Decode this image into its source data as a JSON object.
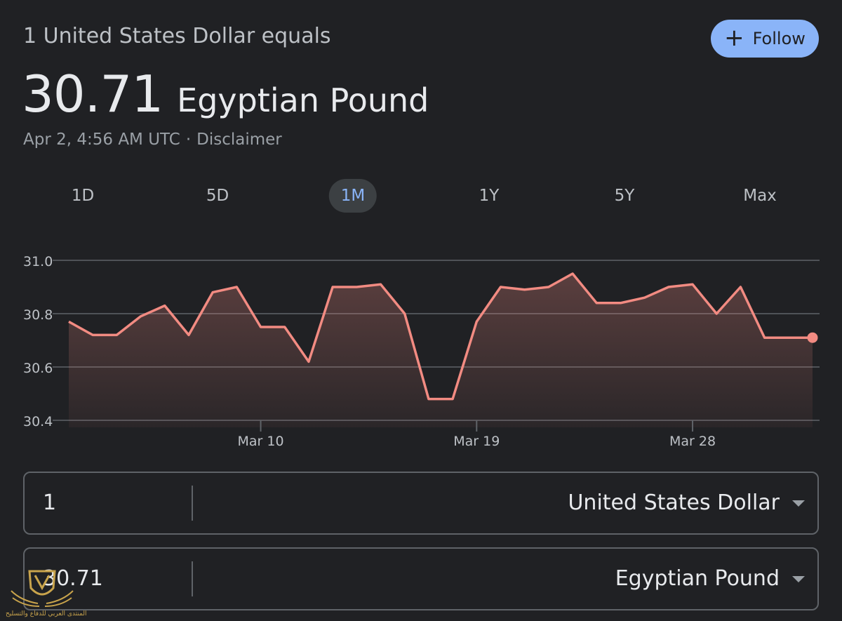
{
  "header": {
    "headline": "1 United States Dollar equals",
    "follow_label": "Follow",
    "follow_icon": "plus-icon",
    "rate_value": "30.71",
    "rate_currency": "Egyptian Pound",
    "timestamp": "Apr 2, 4:56 AM UTC",
    "separator": "·",
    "disclaimer": "Disclaimer"
  },
  "ranges": [
    {
      "label": "1D",
      "active": false
    },
    {
      "label": "5D",
      "active": false
    },
    {
      "label": "1M",
      "active": true
    },
    {
      "label": "1Y",
      "active": false
    },
    {
      "label": "5Y",
      "active": false
    },
    {
      "label": "Max",
      "active": false
    }
  ],
  "colors": {
    "background": "#202124",
    "accent": "#8ab4f8",
    "line": "#f28b82",
    "grid": "#5f6368"
  },
  "chart_data": {
    "type": "area",
    "title": "",
    "xlabel": "",
    "ylabel": "",
    "ylim": [
      30.4,
      31.0
    ],
    "yticks": [
      "31.0",
      "30.8",
      "30.6",
      "30.4"
    ],
    "xticks": [
      "Mar 10",
      "Mar 19",
      "Mar 28"
    ],
    "x": [
      "Mar 2",
      "Mar 3",
      "Mar 4",
      "Mar 5",
      "Mar 6",
      "Mar 7",
      "Mar 8",
      "Mar 9",
      "Mar 10",
      "Mar 11",
      "Mar 12",
      "Mar 13",
      "Mar 14",
      "Mar 15",
      "Mar 16",
      "Mar 17",
      "Mar 18",
      "Mar 19",
      "Mar 20",
      "Mar 21",
      "Mar 22",
      "Mar 23",
      "Mar 24",
      "Mar 25",
      "Mar 26",
      "Mar 27",
      "Mar 28",
      "Mar 29",
      "Mar 30",
      "Mar 31",
      "Apr 1",
      "Apr 2"
    ],
    "series": [
      {
        "values": [
          30.77,
          30.72,
          30.72,
          30.79,
          30.83,
          30.72,
          30.88,
          30.9,
          30.75,
          30.75,
          30.62,
          30.9,
          30.9,
          30.91,
          30.8,
          30.48,
          30.48,
          30.77,
          30.9,
          30.89,
          30.9,
          30.95,
          30.84,
          30.84,
          30.86,
          30.9,
          30.91,
          30.8,
          30.9,
          30.71,
          30.71,
          30.71
        ]
      }
    ],
    "grid": true,
    "legend": "none"
  },
  "converter": {
    "from_value": "1",
    "from_unit": "United States Dollar",
    "to_value": "30.71",
    "to_unit": "Egyptian Pound"
  },
  "watermark": {
    "icon": "shield-emblem-icon",
    "text": "المنتدى العربي للدفاع والتسليح"
  }
}
